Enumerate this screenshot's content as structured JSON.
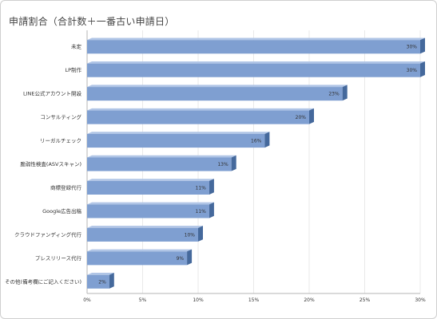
{
  "chart_title": "申請割合（合計数＋一番古い申請日）",
  "colors": {
    "bar_front": "#7f9fd1",
    "bar_top": "#b0c5e6",
    "bar_side": "#45699c",
    "axis": "#b5b5b5",
    "grid": "#e9e9e9"
  },
  "chart_data": {
    "type": "bar",
    "orientation": "horizontal",
    "title": "申請割合（合計数＋一番古い申請日）",
    "categories": [
      "未定",
      "LP制作",
      "LINE公式アカウント開設",
      "コンサルティング",
      "リーガルチェック",
      "脆弱性検査(ASVスキャン)",
      "商標登録代行",
      "Google広告出稿",
      "クラウドファンディング代行",
      "プレスリリース代行",
      "その他(備考欄にご記入ください)"
    ],
    "values": [
      30,
      30,
      23,
      20,
      16,
      13,
      11,
      11,
      10,
      9,
      2
    ],
    "value_labels": [
      "30%",
      "30%",
      "23%",
      "20%",
      "16%",
      "13%",
      "11%",
      "11%",
      "10%",
      "9%",
      "2%"
    ],
    "x_ticks": [
      "0%",
      "5%",
      "10%",
      "15%",
      "20%",
      "25%",
      "30%"
    ],
    "xlim": [
      0,
      30
    ],
    "grid": true,
    "style": "3d"
  }
}
